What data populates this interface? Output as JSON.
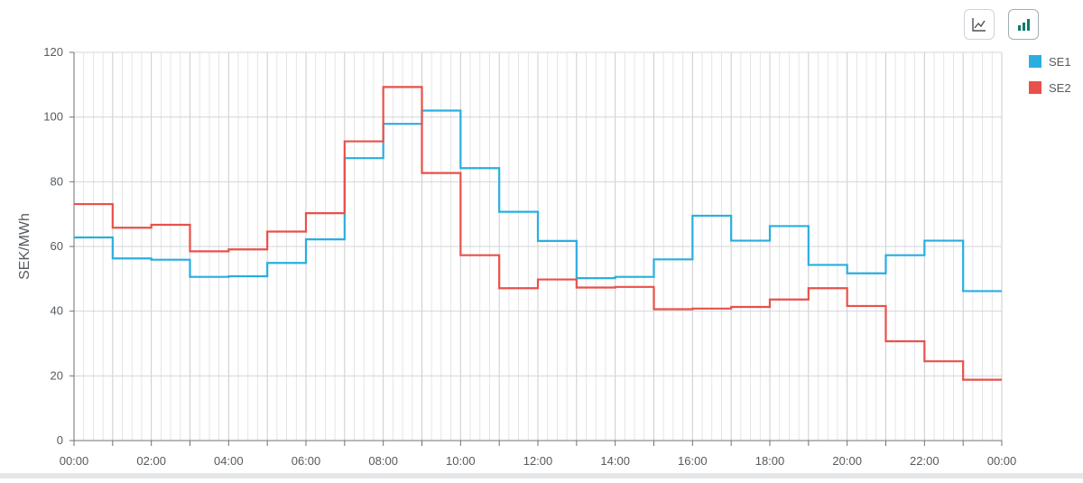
{
  "toolbar": {
    "line_view_icon": "line-chart-icon",
    "bar_view_icon": "bar-chart-icon",
    "active_color": "#0f7a6c",
    "inactive_color": "#4a5056"
  },
  "chart_data": {
    "type": "line",
    "step": true,
    "title": "",
    "xlabel": "",
    "ylabel": "SEK/MWh",
    "ylim": [
      0,
      120
    ],
    "yticks": [
      "0",
      "20",
      "40",
      "60",
      "80",
      "100",
      "120"
    ],
    "xticks": [
      "00:00",
      "02:00",
      "04:00",
      "06:00",
      "08:00",
      "10:00",
      "12:00",
      "14:00",
      "16:00",
      "18:00",
      "20:00",
      "22:00",
      "00:00"
    ],
    "hours": 24,
    "grid": true,
    "legend_position": "top-right",
    "series": [
      {
        "name": "SE1",
        "color": "#29aee0",
        "values": [
          62.8,
          56.3,
          55.9,
          50.6,
          50.8,
          54.9,
          62.2,
          87.3,
          97.9,
          102.0,
          84.2,
          70.7,
          61.7,
          50.2,
          50.6,
          56.0,
          69.5,
          61.8,
          66.3,
          54.3,
          51.7,
          57.3,
          61.8,
          46.2
        ]
      },
      {
        "name": "SE2",
        "color": "#e8514a",
        "values": [
          73.1,
          65.8,
          66.7,
          58.5,
          59.1,
          64.6,
          70.3,
          92.5,
          109.3,
          82.7,
          57.3,
          47.1,
          49.8,
          47.3,
          47.5,
          40.6,
          40.8,
          41.3,
          43.6,
          47.1,
          41.6,
          30.7,
          24.5,
          18.8
        ]
      }
    ]
  }
}
